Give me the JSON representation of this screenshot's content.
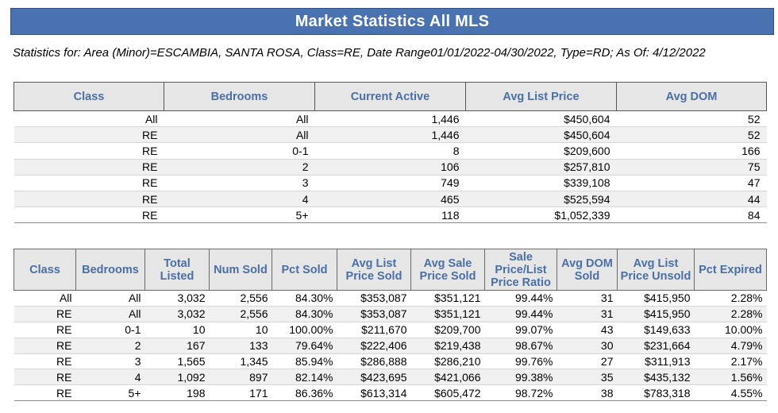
{
  "banner_title": "Market Statistics All MLS",
  "subtitle": "Statistics for: Area (Minor)=ESCAMBIA, SANTA ROSA, Class=RE, Date Range01/01/2022-04/30/2022, Type=RD; As Of: 4/12/2022",
  "active_table": {
    "headers": [
      "Class",
      "Bedrooms",
      "Current Active",
      "Avg List Price",
      "Avg DOM"
    ],
    "rows": [
      [
        "All",
        "All",
        "1,446",
        "$450,604",
        "52"
      ],
      [
        "RE",
        "All",
        "1,446",
        "$450,604",
        "52"
      ],
      [
        "RE",
        "0-1",
        "8",
        "$209,600",
        "166"
      ],
      [
        "RE",
        "2",
        "106",
        "$257,810",
        "75"
      ],
      [
        "RE",
        "3",
        "749",
        "$339,108",
        "47"
      ],
      [
        "RE",
        "4",
        "465",
        "$525,594",
        "44"
      ],
      [
        "RE",
        "5+",
        "118",
        "$1,052,339",
        "84"
      ]
    ]
  },
  "sold_table": {
    "headers": [
      "Class",
      "Bedrooms",
      "Total Listed",
      "Num Sold",
      "Pct Sold",
      "Avg List Price Sold",
      "Avg Sale Price Sold",
      "Sale Price/List Price Ratio",
      "Avg DOM Sold",
      "Avg List Price Unsold",
      "Pct Expired"
    ],
    "rows": [
      [
        "All",
        "All",
        "3,032",
        "2,556",
        "84.30%",
        "$353,087",
        "$351,121",
        "99.44%",
        "31",
        "$415,950",
        "2.28%"
      ],
      [
        "RE",
        "All",
        "3,032",
        "2,556",
        "84.30%",
        "$353,087",
        "$351,121",
        "99.44%",
        "31",
        "$415,950",
        "2.28%"
      ],
      [
        "RE",
        "0-1",
        "10",
        "10",
        "100.00%",
        "$211,670",
        "$209,700",
        "99.07%",
        "43",
        "$149,633",
        "10.00%"
      ],
      [
        "RE",
        "2",
        "167",
        "133",
        "79.64%",
        "$222,406",
        "$219,438",
        "98.67%",
        "30",
        "$231,664",
        "4.79%"
      ],
      [
        "RE",
        "3",
        "1,565",
        "1,345",
        "85.94%",
        "$286,888",
        "$286,210",
        "99.76%",
        "27",
        "$311,913",
        "2.17%"
      ],
      [
        "RE",
        "4",
        "1,092",
        "897",
        "82.14%",
        "$423,695",
        "$421,066",
        "99.38%",
        "35",
        "$435,132",
        "1.56%"
      ],
      [
        "RE",
        "5+",
        "198",
        "171",
        "86.36%",
        "$613,314",
        "$605,472",
        "98.72%",
        "38",
        "$783,318",
        "4.55%"
      ]
    ]
  }
}
